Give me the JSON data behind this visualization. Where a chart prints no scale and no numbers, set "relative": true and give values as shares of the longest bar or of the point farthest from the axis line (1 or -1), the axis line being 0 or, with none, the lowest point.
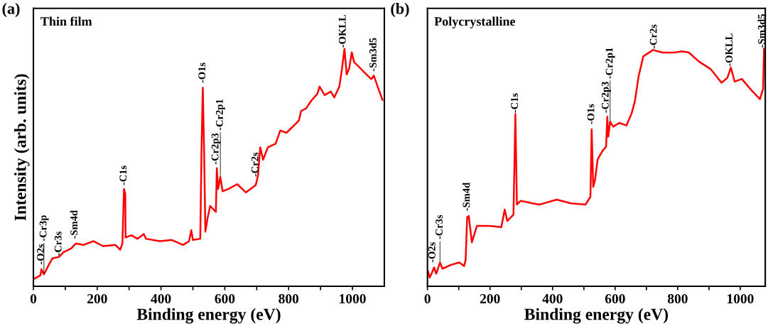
{
  "chart_data": [
    {
      "type": "line",
      "title": "(a)",
      "subtitle": "Thin film",
      "xlabel": "Binding energy (eV)",
      "ylabel": "Intensity (arb. units)",
      "relative": true,
      "xlim": [
        0,
        1100
      ],
      "xticks": [
        0,
        {
          "value": 100,
          "label": null
        },
        200,
        {
          "value": 300,
          "label": null
        },
        400,
        {
          "value": 500,
          "label": null
        },
        600,
        {
          "value": 700,
          "label": null
        },
        800,
        {
          "value": 900,
          "label": null
        },
        1000
      ],
      "tick_labels": "x",
      "grid": false,
      "marker": "none",
      "line_style": "solid",
      "series": [
        {
          "color": "#ff0000",
          "x": [
            0,
            22,
            25,
            33,
            49,
            60,
            80,
            95,
            118,
            133,
            157,
            188,
            218,
            257,
            272,
            279,
            284,
            288,
            289,
            307,
            326,
            346,
            353,
            396,
            434,
            469,
            488,
            495,
            500,
            523,
            527,
            531,
            535,
            539,
            546,
            554,
            565,
            572,
            575,
            579,
            586,
            593,
            612,
            639,
            666,
            697,
            704,
            711,
            720,
            735,
            759,
            774,
            793,
            809,
            832,
            839,
            855,
            870,
            890,
            897,
            913,
            932,
            943,
            959,
            967,
            975,
            982,
            990,
            998,
            1005,
            1021,
            1044,
            1059,
            1067,
            1079,
            1094
          ],
          "values": [
            0.03,
            0.046,
            0.072,
            0.05,
            0.092,
            0.118,
            0.123,
            0.144,
            0.159,
            0.18,
            0.174,
            0.19,
            0.169,
            0.174,
            0.154,
            0.18,
            0.41,
            0.39,
            0.205,
            0.215,
            0.2,
            0.22,
            0.2,
            0.19,
            0.195,
            0.174,
            0.19,
            0.236,
            0.195,
            0.2,
            0.574,
            0.836,
            0.574,
            0.23,
            0.287,
            0.338,
            0.323,
            0.313,
            0.497,
            0.41,
            0.46,
            0.4,
            0.41,
            0.43,
            0.395,
            0.426,
            0.467,
            0.585,
            0.533,
            0.585,
            0.6,
            0.656,
            0.646,
            0.667,
            0.697,
            0.738,
            0.749,
            0.78,
            0.81,
            0.841,
            0.805,
            0.82,
            0.795,
            0.841,
            0.913,
            1.0,
            0.892,
            0.918,
            0.985,
            0.944,
            0.923,
            0.892,
            0.872,
            0.887,
            0.841,
            0.785
          ]
        }
      ],
      "annotations": [
        {
          "text": "-O2s",
          "x": 25,
          "y": 0.087
        },
        {
          "text": "-Cr3p",
          "x": 33,
          "y": 0.05
        },
        {
          "text": "-Cr3s",
          "x": 80,
          "y": 0.123
        },
        {
          "text": "-Sm4d",
          "x": 130,
          "y": 0.195
        },
        {
          "text": "-C1s",
          "x": 284,
          "y": 0.42
        },
        {
          "text": "-O1s",
          "x": 531,
          "y": 0.851
        },
        {
          "text": "-Cr2p3",
          "x": 572,
          "y": 0.508
        },
        {
          "text": "-Cr2p1",
          "x": 586,
          "y": 0.46
        },
        {
          "text": "-Cr2s",
          "x": 697,
          "y": 0.456
        },
        {
          "text": "-OKLL",
          "x": 971,
          "y": 1.0
        },
        {
          "text": "-Sm3d5",
          "x": 1067,
          "y": 0.9
        }
      ]
    },
    {
      "type": "line",
      "title": "(b)",
      "subtitle": "Polycrystalline",
      "xlabel": "Binding energy (eV)",
      "relative": true,
      "xlim": [
        0,
        1080
      ],
      "xticks": [
        0,
        {
          "value": 100,
          "label": null
        },
        200,
        {
          "value": 300,
          "label": null
        },
        400,
        {
          "value": 500,
          "label": null
        },
        600,
        {
          "value": 700,
          "label": null
        },
        800,
        {
          "value": 900,
          "label": null
        },
        1000
      ],
      "tick_labels": "x",
      "grid": false,
      "marker": "none",
      "line_style": "solid",
      "series": [
        {
          "color": "#ff0000",
          "x": [
            2,
            7,
            13,
            21,
            28,
            40,
            48,
            75,
            102,
            117,
            122,
            127,
            132,
            142,
            158,
            198,
            236,
            247,
            255,
            275,
            281,
            286,
            298,
            336,
            359,
            413,
            459,
            505,
            521,
            525,
            530,
            536,
            544,
            560,
            571,
            575,
            578,
            584,
            594,
            613,
            636,
            652,
            663,
            675,
            690,
            721,
            752,
            790,
            813,
            836,
            867,
            905,
            940,
            959,
            970,
            982,
            1005,
            1036,
            1063,
            1073,
            1076
          ],
          "values": [
            0.063,
            0.037,
            0.053,
            0.079,
            0.053,
            0.1,
            0.074,
            0.09,
            0.1,
            0.085,
            0.111,
            0.291,
            0.296,
            0.185,
            0.254,
            0.254,
            0.249,
            0.323,
            0.275,
            0.302,
            0.725,
            0.344,
            0.36,
            0.349,
            0.344,
            0.365,
            0.349,
            0.344,
            0.376,
            0.661,
            0.418,
            0.45,
            0.534,
            0.571,
            0.587,
            0.714,
            0.63,
            0.693,
            0.672,
            0.688,
            0.677,
            0.725,
            0.778,
            0.884,
            0.968,
            0.995,
            0.984,
            0.984,
            0.989,
            0.984,
            0.947,
            0.915,
            0.857,
            0.878,
            0.921,
            0.862,
            0.873,
            0.825,
            0.788,
            0.831,
            1.0
          ]
        }
      ],
      "annotations": [
        {
          "text": "-O2s",
          "x": 17,
          "y": 0.095
        },
        {
          "text": "-Cr3s",
          "x": 40,
          "y": 0.1
        },
        {
          "text": "-Sm4d",
          "x": 127,
          "y": 0.312
        },
        {
          "text": "-C1s",
          "x": 281,
          "y": 0.725
        },
        {
          "text": "-O1s",
          "x": 525,
          "y": 0.677
        },
        {
          "text": "-Cr2p3",
          "x": 571,
          "y": 0.725
        },
        {
          "text": "-Cr2p1",
          "x": 584,
          "y": 0.693
        },
        {
          "text": "-Cr2s",
          "x": 725,
          "y": 0.995
        },
        {
          "text": "-OKLL",
          "x": 967,
          "y": 0.921
        },
        {
          "text": "-Sm3d5",
          "x": 1071,
          "y": 1.0
        }
      ]
    }
  ]
}
